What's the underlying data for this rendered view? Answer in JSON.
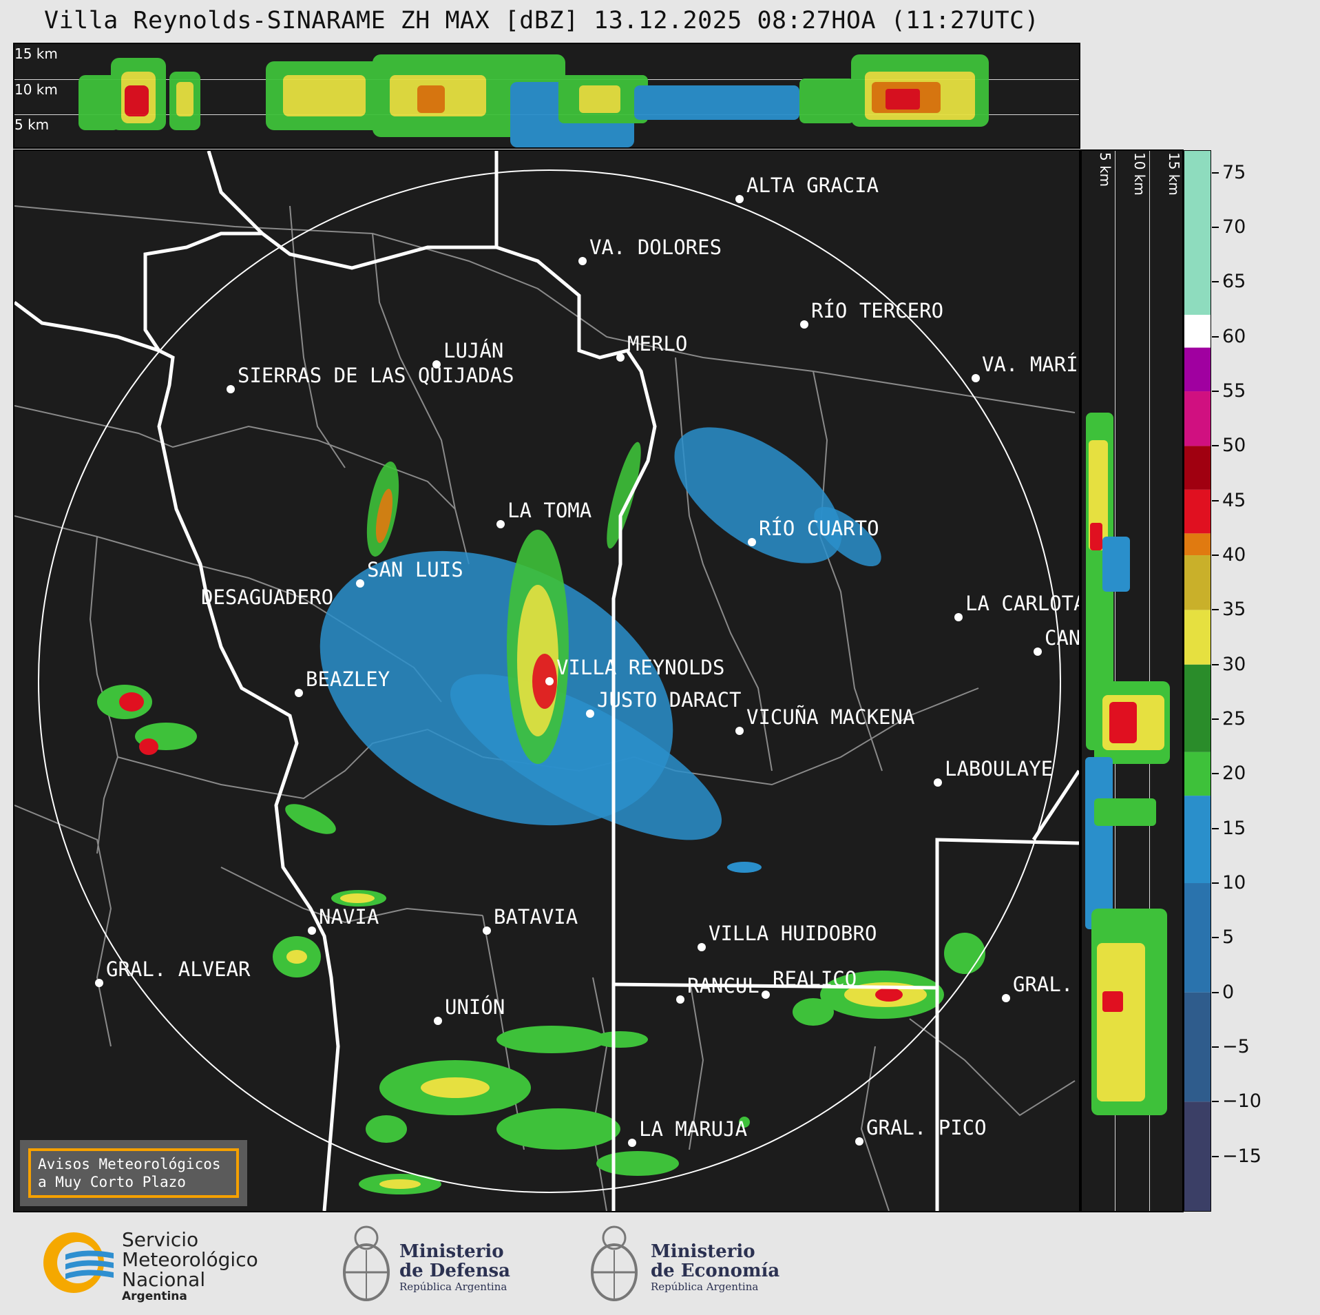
{
  "title": "Villa Reynolds-SINARAME ZH MAX [dBZ] 13.12.2025 08:27HOA (11:27UTC)",
  "height_labels": {
    "top": [
      "15 km",
      "10 km",
      "5 km"
    ],
    "right": [
      "5 km",
      "10 km",
      "15 km"
    ]
  },
  "colorbar": {
    "unit": "dBZ",
    "ticks": [
      "75",
      "70",
      "65",
      "60",
      "55",
      "50",
      "45",
      "40",
      "35",
      "30",
      "25",
      "20",
      "15",
      "10",
      "5",
      "0",
      "−5",
      "−10",
      "−15"
    ],
    "range": [
      -20,
      77
    ],
    "stops": [
      {
        "from": -20,
        "to": -10,
        "color": "#3b3f66"
      },
      {
        "from": -10,
        "to": 0,
        "color": "#2f5c8c"
      },
      {
        "from": 0,
        "to": 10,
        "color": "#2a73ad"
      },
      {
        "from": 10,
        "to": 18,
        "color": "#2a8fcb"
      },
      {
        "from": 18,
        "to": 22,
        "color": "#3ec13a"
      },
      {
        "from": 22,
        "to": 30,
        "color": "#2a8c2a"
      },
      {
        "from": 30,
        "to": 35,
        "color": "#e6e040"
      },
      {
        "from": 35,
        "to": 40,
        "color": "#c9b02a"
      },
      {
        "from": 40,
        "to": 42,
        "color": "#e07a10"
      },
      {
        "from": 42,
        "to": 46,
        "color": "#e01020"
      },
      {
        "from": 46,
        "to": 50,
        "color": "#a00010"
      },
      {
        "from": 50,
        "to": 55,
        "color": "#d01080"
      },
      {
        "from": 55,
        "to": 59,
        "color": "#a000a0"
      },
      {
        "from": 59,
        "to": 62,
        "color": "#ffffff"
      },
      {
        "from": 62,
        "to": 77,
        "color": "#8edcbe"
      }
    ]
  },
  "cities": [
    {
      "name": "ALTA GRACIA"
    },
    {
      "name": "VA. DOLORES"
    },
    {
      "name": "RÍO TERCERO"
    },
    {
      "name": "LUJÁN"
    },
    {
      "name": "MERLO"
    },
    {
      "name": "SIERRAS DE LAS QUIJADAS"
    },
    {
      "name": "VA. MARÍ"
    },
    {
      "name": "LA TOMA"
    },
    {
      "name": "RÍO CUARTO"
    },
    {
      "name": "SAN LUIS"
    },
    {
      "name": "DESAGUADERO"
    },
    {
      "name": "LA CARLOTA"
    },
    {
      "name": "CAN"
    },
    {
      "name": "VILLA REYNOLDS"
    },
    {
      "name": "BEAZLEY"
    },
    {
      "name": "JUSTO DARACT"
    },
    {
      "name": "VICUÑA MACKENA"
    },
    {
      "name": "LABOULAYE"
    },
    {
      "name": "NAVIA"
    },
    {
      "name": "BATAVIA"
    },
    {
      "name": "VILLA HUIDOBRO"
    },
    {
      "name": "GRAL. ALVEAR"
    },
    {
      "name": "RANCUL"
    },
    {
      "name": "REALICO"
    },
    {
      "name": "GRAL."
    },
    {
      "name": "UNIÓN"
    },
    {
      "name": "LA MARUJA"
    },
    {
      "name": "GRAL. PICO"
    }
  ],
  "avisos": {
    "line1": "Avisos Meteorológicos",
    "line2": "a Muy Corto Plazo"
  },
  "logos": {
    "smn": {
      "line1": "Servicio",
      "line2": "Meteorológico",
      "line3": "Nacional",
      "sub": "Argentina"
    },
    "defensa": {
      "line1": "Ministerio",
      "line2": "de Defensa",
      "sub": "República Argentina"
    },
    "economia": {
      "line1": "Ministerio",
      "line2": "de Economía",
      "sub": "República Argentina"
    }
  }
}
